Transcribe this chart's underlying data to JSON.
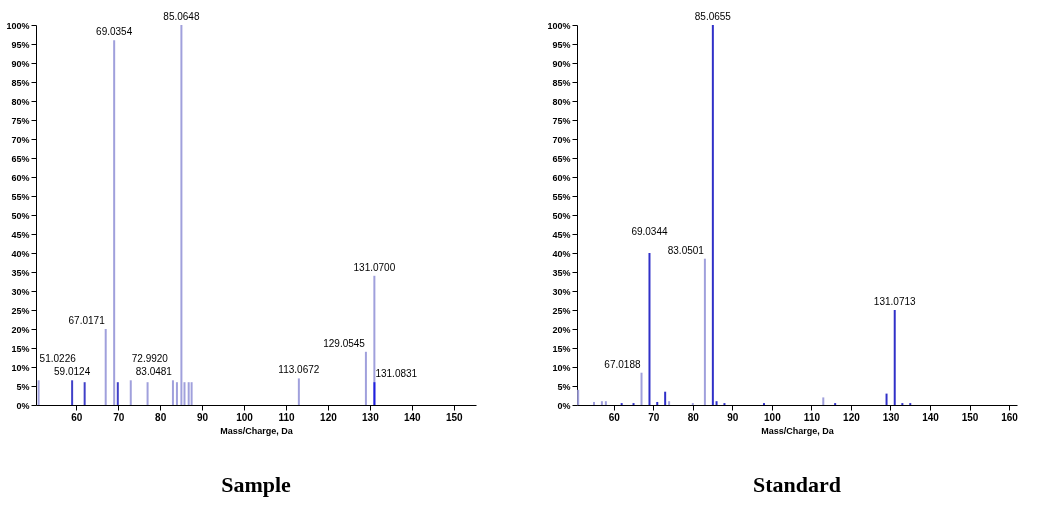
{
  "chart_data": [
    {
      "type": "bar",
      "title": "Sample",
      "xlabel": "Mass/Charge, Da",
      "x": [
        51.0226,
        59.0124,
        62,
        67.0171,
        69.0354,
        69.9,
        72.992,
        77,
        83.0481,
        84,
        85.0648,
        85.8,
        86.8,
        87.5,
        113.0672,
        129.0545,
        131.07,
        131.0831
      ],
      "values": [
        6.5,
        6.5,
        6,
        20,
        96,
        6,
        6.5,
        6,
        6.5,
        6,
        100,
        6,
        6,
        6,
        7,
        14,
        34,
        6
      ],
      "colors": [
        "#a0a0dc",
        "#4040c8",
        "#4040c8",
        "#a0a0dc",
        "#a0a0dc",
        "#4040c8",
        "#a0a0dc",
        "#a0a0dc",
        "#a0a0dc",
        "#a0a0dc",
        "#a0a0dc",
        "#a0a0dc",
        "#a0a0dc",
        "#a0a0dc",
        "#a0a0dc",
        "#a0a0dc",
        "#a0a0dc",
        "#2020e0"
      ],
      "xlim": [
        50.4,
        155.3
      ],
      "xticks": [
        60,
        70,
        80,
        90,
        100,
        110,
        120,
        130,
        140,
        150
      ],
      "ylim": [
        0,
        100
      ],
      "yticks": [
        {
          "value": 0,
          "label": "0%"
        },
        {
          "value": 5,
          "label": "5%"
        },
        {
          "value": 10,
          "label": "10%"
        },
        {
          "value": 15,
          "label": "15%"
        },
        {
          "value": 20,
          "label": "20%"
        },
        {
          "value": 25,
          "label": "25%"
        },
        {
          "value": 30,
          "label": "30%"
        },
        {
          "value": 35,
          "label": "35%"
        },
        {
          "value": 40,
          "label": "40%"
        },
        {
          "value": 45,
          "label": "45%"
        },
        {
          "value": 50,
          "label": "50%"
        },
        {
          "value": 55,
          "label": "55%"
        },
        {
          "value": 60,
          "label": "60%"
        },
        {
          "value": 65,
          "label": "65%"
        },
        {
          "value": 70,
          "label": "70%"
        },
        {
          "value": 75,
          "label": "75%"
        },
        {
          "value": 80,
          "label": "80%"
        },
        {
          "value": 85,
          "label": "85%"
        },
        {
          "value": 90,
          "label": "90%"
        },
        {
          "value": 95,
          "label": "95%"
        },
        {
          "value": 100,
          "label": "100%"
        }
      ],
      "grid": false,
      "annotations": [
        {
          "text": "51.0226",
          "x": 51.0226,
          "y": 6.5
        },
        {
          "text": "59.0124",
          "x": 59.0124,
          "y": 6.5
        },
        {
          "text": "67.0171",
          "x": 67.0171,
          "y": 20
        },
        {
          "text": "69.0354",
          "x": 69.0354,
          "y": 96
        },
        {
          "text": "72.9920",
          "x": 72.992,
          "y": 6.5
        },
        {
          "text": "83.0481",
          "x": 83.0481,
          "y": 6.5
        },
        {
          "text": "85.0648",
          "x": 85.0648,
          "y": 100
        },
        {
          "text": "113.0672",
          "x": 113.0672,
          "y": 7
        },
        {
          "text": "129.0545",
          "x": 129.0545,
          "y": 14
        },
        {
          "text": "131.0700",
          "x": 131.07,
          "y": 34
        },
        {
          "text": "131.0831",
          "x": 131.0831,
          "y": 6
        }
      ]
    },
    {
      "type": "bar",
      "title": "Standard",
      "xlabel": "Mass/Charge, Da",
      "x": [
        51,
        55,
        57,
        58,
        62,
        65,
        67.0188,
        69.0344,
        71,
        73,
        74,
        80,
        83.0501,
        85.0655,
        86,
        88,
        98,
        113,
        116,
        129,
        131.0713,
        133,
        135
      ],
      "values": [
        4,
        0.8,
        1,
        1,
        0.5,
        0.5,
        8.5,
        40,
        0.8,
        3.5,
        1,
        0.5,
        38.5,
        100,
        1,
        0.5,
        0.5,
        2,
        0.5,
        3,
        25,
        0.5,
        0.5
      ],
      "colors": [
        "#a0a0dc",
        "#a0a0dc",
        "#a0a0dc",
        "#a0a0dc",
        "#3030c8",
        "#3030c8",
        "#a0a0dc",
        "#3030c8",
        "#3030c8",
        "#3030c8",
        "#a0a0dc",
        "#a0a0dc",
        "#a0a0dc",
        "#3030c8",
        "#3030c8",
        "#3030c8",
        "#3030c8",
        "#a0a0dc",
        "#3030c8",
        "#3030c8",
        "#3030c8",
        "#3030c8",
        "#3030c8"
      ],
      "xlim": [
        50.7,
        162
      ],
      "xticks": [
        60,
        70,
        80,
        90,
        100,
        110,
        120,
        130,
        140,
        150,
        160
      ],
      "ylim": [
        0,
        100
      ],
      "yticks": [
        {
          "value": 0,
          "label": "0%"
        },
        {
          "value": 5,
          "label": "5%"
        },
        {
          "value": 10,
          "label": "10%"
        },
        {
          "value": 15,
          "label": "15%"
        },
        {
          "value": 20,
          "label": "20%"
        },
        {
          "value": 25,
          "label": "25%"
        },
        {
          "value": 30,
          "label": "30%"
        },
        {
          "value": 35,
          "label": "35%"
        },
        {
          "value": 40,
          "label": "40%"
        },
        {
          "value": 45,
          "label": "45%"
        },
        {
          "value": 50,
          "label": "50%"
        },
        {
          "value": 55,
          "label": "55%"
        },
        {
          "value": 60,
          "label": "60%"
        },
        {
          "value": 65,
          "label": "65%"
        },
        {
          "value": 70,
          "label": "70%"
        },
        {
          "value": 75,
          "label": "75%"
        },
        {
          "value": 80,
          "label": "80%"
        },
        {
          "value": 85,
          "label": "85%"
        },
        {
          "value": 90,
          "label": "90%"
        },
        {
          "value": 95,
          "label": "95%"
        },
        {
          "value": 100,
          "label": "100%"
        }
      ],
      "grid": false,
      "annotations": [
        {
          "text": "67.0188",
          "x": 67.0188,
          "y": 8.5
        },
        {
          "text": "69.0344",
          "x": 69.0344,
          "y": 40
        },
        {
          "text": "83.0501",
          "x": 83.0501,
          "y": 38.5
        },
        {
          "text": "85.0655",
          "x": 85.0655,
          "y": 100
        },
        {
          "text": "131.0713",
          "x": 131.0713,
          "y": 25
        }
      ]
    }
  ]
}
